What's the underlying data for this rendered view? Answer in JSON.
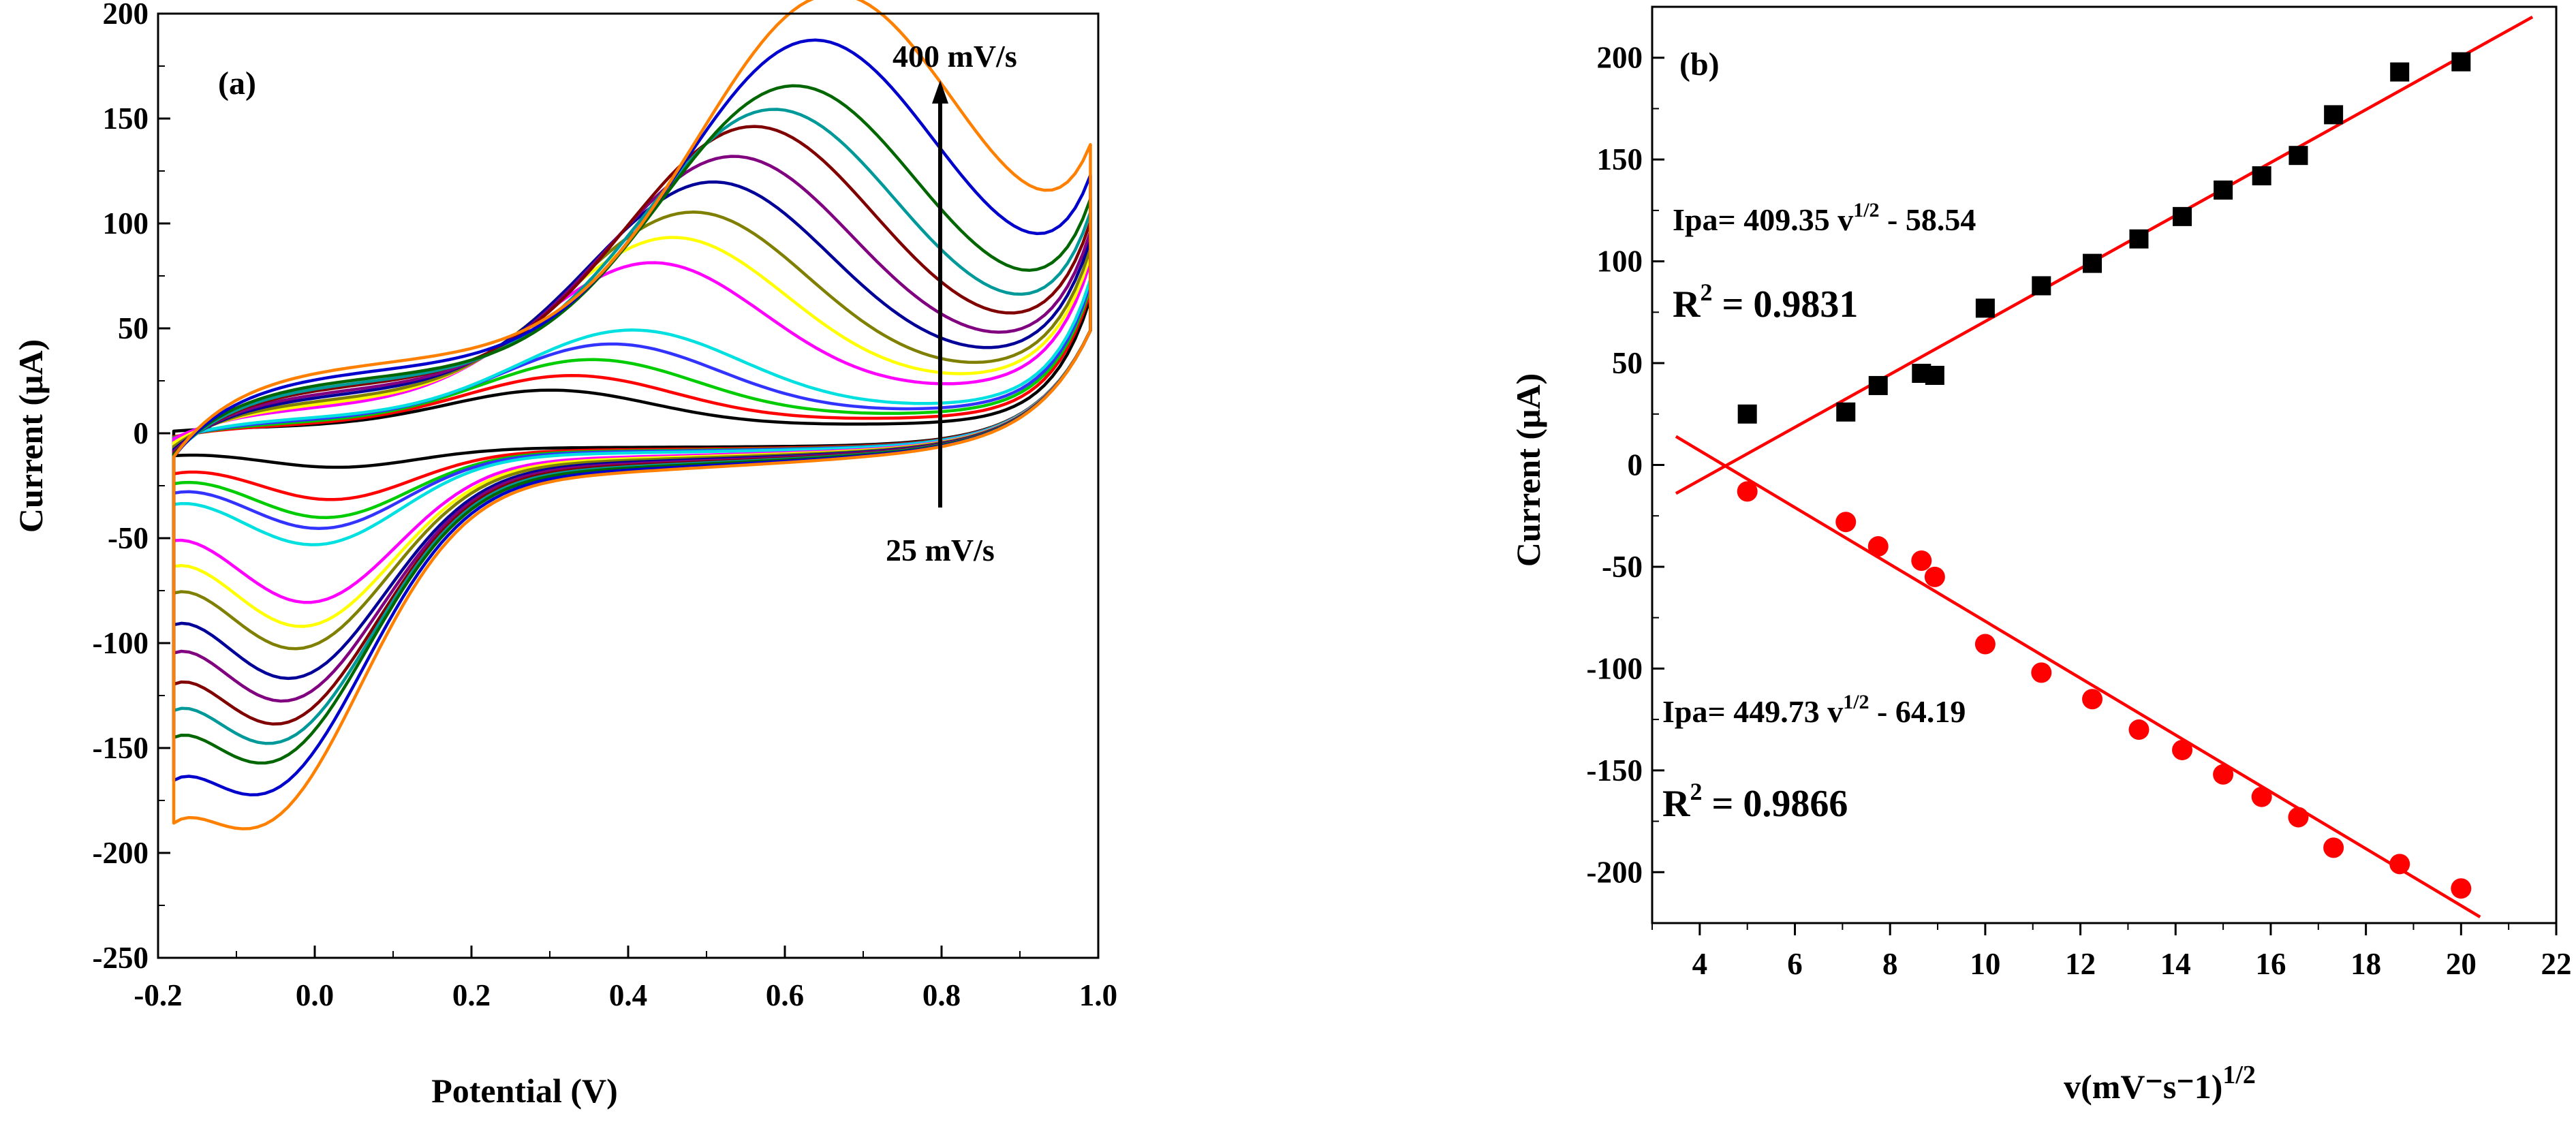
{
  "chart_data": [
    {
      "type": "line",
      "panel_label": "(a)",
      "xlabel": "Potential (V)",
      "ylabel": "Current (μA)",
      "xlim": [
        -0.2,
        1.0
      ],
      "ylim": [
        -250,
        200
      ],
      "xticks": [
        "-0.2",
        "0.0",
        "0.2",
        "0.4",
        "0.6",
        "0.8",
        "1.0"
      ],
      "yticks": [
        "200",
        "150",
        "100",
        "50",
        "0",
        "-50",
        "-100",
        "-150",
        "-200",
        "-250"
      ],
      "annotations": {
        "top": "400 mV/s",
        "bottom": "25 mV/s"
      },
      "grid": false,
      "series": [
        {
          "color": "#000000",
          "anodic_peak": 20,
          "cathodic_peak": -12,
          "start_current": -10
        },
        {
          "color": "#ff0000",
          "anodic_peak": 26,
          "cathodic_peak": -30,
          "start_current": -28
        },
        {
          "color": "#00cc00",
          "anodic_peak": 33,
          "cathodic_peak": -40,
          "start_current": -35
        },
        {
          "color": "#3333ff",
          "anodic_peak": 40,
          "cathodic_peak": -46,
          "start_current": -42
        },
        {
          "color": "#00e0e0",
          "anodic_peak": 46,
          "cathodic_peak": -55,
          "start_current": -48
        },
        {
          "color": "#ff00ff",
          "anodic_peak": 76,
          "cathodic_peak": -87,
          "start_current": -70
        },
        {
          "color": "#ffff00",
          "anodic_peak": 87,
          "cathodic_peak": -100,
          "start_current": -88
        },
        {
          "color": "#808000",
          "anodic_peak": 98,
          "cathodic_peak": -112,
          "start_current": -105
        },
        {
          "color": "#000099",
          "anodic_peak": 111,
          "cathodic_peak": -128,
          "start_current": -122
        },
        {
          "color": "#800080",
          "anodic_peak": 122,
          "cathodic_peak": -140,
          "start_current": -135
        },
        {
          "color": "#800000",
          "anodic_peak": 135,
          "cathodic_peak": -152,
          "start_current": -150
        },
        {
          "color": "#009999",
          "anodic_peak": 142,
          "cathodic_peak": -162,
          "start_current": -158
        },
        {
          "color": "#006600",
          "anodic_peak": 152,
          "cathodic_peak": -172,
          "start_current": -165
        },
        {
          "color": "#0000cc",
          "anodic_peak": 172,
          "cathodic_peak": -188,
          "start_current": -185
        },
        {
          "color": "#ff8000",
          "anodic_peak": 192,
          "cathodic_peak": -205,
          "start_current": -200
        }
      ]
    },
    {
      "type": "scatter",
      "panel_label": "(b)",
      "xlabel": "v(mV⁻s⁻1)",
      "xlabel_sup": "1/2",
      "ylabel": "Current (μA)",
      "xlim": [
        3,
        22
      ],
      "ylim": [
        -225,
        225
      ],
      "xticks": [
        "4",
        "6",
        "8",
        "10",
        "12",
        "14",
        "16",
        "18",
        "20",
        "22"
      ],
      "yticks": [
        "200",
        "150",
        "100",
        "50",
        "0",
        "-50",
        "-100",
        "-150",
        "-200"
      ],
      "grid": false,
      "series": [
        {
          "color": "#000000",
          "marker": "square",
          "x": [
            5.0,
            7.07,
            7.75,
            8.66,
            8.94,
            10.0,
            11.18,
            12.25,
            13.23,
            14.14,
            15.0,
            15.81,
            16.58,
            17.32,
            18.71,
            20.0
          ],
          "y": [
            25,
            26,
            39,
            45,
            44,
            77,
            88,
            99,
            111,
            122,
            135,
            142,
            152,
            172,
            193,
            198
          ],
          "fit": {
            "x": [
              3.5,
              21.5
            ],
            "y": [
              -14,
              220
            ]
          },
          "equation": "Ipa= 409.35 v",
          "equation_sup": "1/2",
          "equation_tail": " - 58.54",
          "r2_label": "R",
          "r2_sup": "2",
          "r2_value": " = 0.9831"
        },
        {
          "color": "#ff0000",
          "marker": "circle",
          "x": [
            5.0,
            7.07,
            7.75,
            8.66,
            8.94,
            10.0,
            11.18,
            12.25,
            13.23,
            14.14,
            15.0,
            15.81,
            16.58,
            17.32,
            18.71,
            20.0
          ],
          "y": [
            -13,
            -28,
            -40,
            -47,
            -55,
            -88,
            -102,
            -115,
            -130,
            -140,
            -152,
            -163,
            -173,
            -188,
            -196,
            -208
          ],
          "fit": {
            "x": [
              3.5,
              20.4
            ],
            "y": [
              14,
              -222
            ]
          },
          "equation": "Ipa= 449.73 v",
          "equation_sup": "1/2",
          "equation_tail": " - 64.19",
          "r2_label": "R",
          "r2_sup": "2",
          "r2_value": " = 0.9866"
        }
      ]
    }
  ]
}
